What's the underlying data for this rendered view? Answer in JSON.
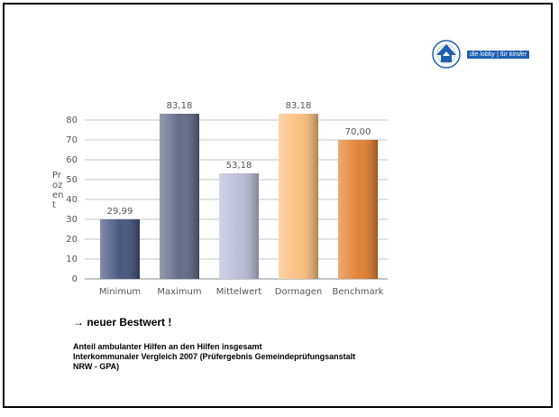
{
  "logo": {
    "text": "die lobby | für kinder"
  },
  "chart_data": {
    "type": "bar",
    "y_label": "Prozent",
    "categories": [
      "Minimum",
      "Maximum",
      "Mittelwert",
      "Dormagen",
      "Benchmark"
    ],
    "values": [
      29.99,
      83.18,
      53.18,
      83.18,
      70.0
    ],
    "value_labels": [
      "29,99",
      "83,18",
      "53,18",
      "83,18",
      "70,00"
    ],
    "colors": [
      "#3f4f7d",
      "#5d6682",
      "#b8bbd4",
      "#fbbd7a",
      "#e27d2c"
    ],
    "ylim": [
      0,
      90
    ],
    "yticks": [
      0,
      10,
      20,
      30,
      40,
      50,
      60,
      70,
      80
    ],
    "grid": true,
    "annotation": "→ neuer Bestwert !",
    "caption": [
      "Anteil ambulanter Hilfen an den Hilfen insgesamt",
      "Interkommunaler Vergleich 2007 (Prüfergebnis Gemeindeprüfungsanstalt",
      "NRW - GPA)"
    ]
  }
}
